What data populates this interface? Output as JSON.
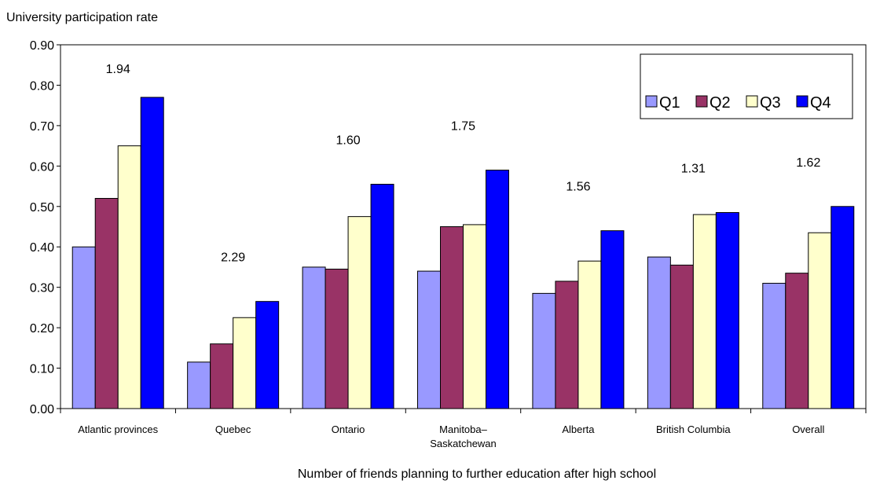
{
  "chart_data": {
    "type": "bar",
    "ylabel": "University participation rate",
    "xlabel": "Number of friends planning to further education after high school",
    "ylim": [
      0,
      0.9
    ],
    "yticks": [
      "0.00",
      "0.10",
      "0.20",
      "0.30",
      "0.40",
      "0.50",
      "0.60",
      "0.70",
      "0.80",
      "0.90"
    ],
    "grid": false,
    "legend_position": "top-right",
    "categories": [
      [
        "Atlantic provinces"
      ],
      [
        "Quebec"
      ],
      [
        "Ontario"
      ],
      [
        "Manitoba–",
        "Saskatchewan"
      ],
      [
        "Alberta"
      ],
      [
        "British Columbia"
      ],
      [
        "Overall"
      ]
    ],
    "series": [
      {
        "name": "Q1",
        "color": "#9999ff",
        "values": [
          0.4,
          0.115,
          0.35,
          0.34,
          0.285,
          0.375,
          0.31
        ]
      },
      {
        "name": "Q2",
        "color": "#993366",
        "values": [
          0.52,
          0.16,
          0.345,
          0.45,
          0.315,
          0.355,
          0.335
        ]
      },
      {
        "name": "Q3",
        "color": "#ffffcc",
        "values": [
          0.65,
          0.225,
          0.475,
          0.455,
          0.365,
          0.48,
          0.435
        ]
      },
      {
        "name": "Q4",
        "color": "#0000ff",
        "values": [
          0.77,
          0.265,
          0.555,
          0.59,
          0.44,
          0.485,
          0.5
        ]
      }
    ],
    "annotations": [
      "1.94",
      "2.29",
      "1.60",
      "1.75",
      "1.56",
      "1.31",
      "1.62"
    ]
  }
}
